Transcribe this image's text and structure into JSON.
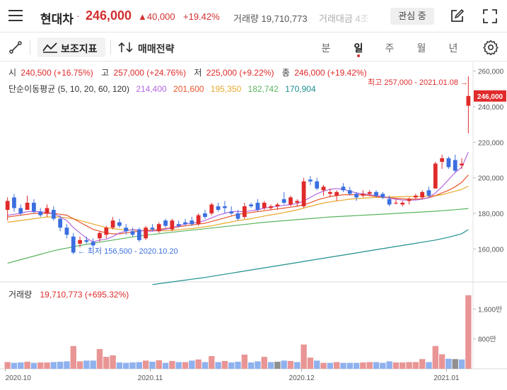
{
  "header": {
    "stock_name": "현대차",
    "separator": "·",
    "price": "246,000",
    "change": "▲40,000",
    "change_pct": "+19.42%",
    "volume_label": "거래량",
    "volume_value": "19,710,773",
    "amount_label": "거래대금 4조",
    "interest_label": "관심 중",
    "icons": [
      "menu-icon",
      "edit-icon",
      "expand-icon"
    ]
  },
  "toolbar": {
    "indicator_label": "보조지표",
    "strategy_label": "매매전략",
    "periods": [
      "분",
      "일",
      "주",
      "월",
      "년"
    ],
    "active_period": "일",
    "icons": [
      "draw-line-icon",
      "indicator-icon",
      "strategy-icon",
      "settings-icon"
    ]
  },
  "legend": {
    "open_label": "시",
    "open": "240,500 (+16.75%)",
    "high_label": "고",
    "high": "257,000 (+24.76%)",
    "low_label": "저",
    "low": "225,000 (+9.22%)",
    "close_label": "종",
    "close": "246,000 (+19.42%)",
    "ma_label": "단순이동평균 (5, 10, 20, 60, 120)",
    "ma_values": [
      {
        "value": "214,400",
        "color": "#b36ae2"
      },
      {
        "value": "201,600",
        "color": "#e8562b"
      },
      {
        "value": "195,350",
        "color": "#e8a92b"
      },
      {
        "value": "182,742",
        "color": "#5ab55e"
      },
      {
        "value": "170,904",
        "color": "#1f8f8f"
      }
    ]
  },
  "annotations": {
    "max": "최고 257,000 - 2021.01.08 →",
    "min": "← 최저 156,500 - 2020.10.20"
  },
  "price_axis": {
    "ticks": [
      "260,000",
      "240,000",
      "220,000",
      "200,000",
      "180,000",
      "160,000"
    ],
    "current": "246,000"
  },
  "volume_panel": {
    "label": "거래량",
    "value": "19,710,773 (+695.32%)",
    "ticks": [
      "1,600만",
      "800만"
    ]
  },
  "x_axis": {
    "ticks": [
      "2020.10",
      "2020.11",
      "2020.12",
      "2021.01"
    ]
  },
  "colors": {
    "up": "#e02b2b",
    "down": "#3b6fe0",
    "volume_up": "#e99595",
    "volume_down": "#8fb1ee",
    "volume_flat": "#909090"
  },
  "chart_data": {
    "type": "candlestick",
    "candles": [
      {
        "o": 182,
        "h": 189,
        "l": 176,
        "c": 187
      },
      {
        "o": 189,
        "h": 191,
        "l": 181,
        "c": 183
      },
      {
        "o": 183,
        "h": 185,
        "l": 179,
        "c": 180
      },
      {
        "o": 182,
        "h": 190,
        "l": 182,
        "c": 186
      },
      {
        "o": 186,
        "h": 188,
        "l": 180,
        "c": 181
      },
      {
        "o": 181,
        "h": 183,
        "l": 178,
        "c": 179
      },
      {
        "o": 180,
        "h": 185,
        "l": 178,
        "c": 183
      },
      {
        "o": 182,
        "h": 184,
        "l": 176,
        "c": 177
      },
      {
        "o": 177,
        "h": 179,
        "l": 170,
        "c": 172
      },
      {
        "o": 172,
        "h": 174,
        "l": 166,
        "c": 168
      },
      {
        "o": 167,
        "h": 169,
        "l": 157,
        "c": 158
      },
      {
        "o": 163,
        "h": 167,
        "l": 161,
        "c": 165
      },
      {
        "o": 165,
        "h": 167,
        "l": 163,
        "c": 164
      },
      {
        "o": 164,
        "h": 166,
        "l": 161,
        "c": 162
      },
      {
        "o": 166,
        "h": 170,
        "l": 164,
        "c": 169
      },
      {
        "o": 168,
        "h": 173,
        "l": 166,
        "c": 172
      },
      {
        "o": 172,
        "h": 178,
        "l": 171,
        "c": 176
      },
      {
        "o": 175,
        "h": 177,
        "l": 172,
        "c": 173
      },
      {
        "o": 172,
        "h": 174,
        "l": 168,
        "c": 170
      },
      {
        "o": 170,
        "h": 172,
        "l": 167,
        "c": 168
      },
      {
        "o": 171,
        "h": 172,
        "l": 164,
        "c": 165
      },
      {
        "o": 166,
        "h": 173,
        "l": 165,
        "c": 172
      },
      {
        "o": 172,
        "h": 174,
        "l": 170,
        "c": 171
      },
      {
        "o": 170,
        "h": 175,
        "l": 169,
        "c": 174
      },
      {
        "o": 176,
        "h": 177,
        "l": 172,
        "c": 173
      },
      {
        "o": 171,
        "h": 177,
        "l": 170,
        "c": 176
      },
      {
        "o": 174,
        "h": 176,
        "l": 172,
        "c": 173
      },
      {
        "o": 175,
        "h": 177,
        "l": 173,
        "c": 174
      },
      {
        "o": 176,
        "h": 178,
        "l": 173,
        "c": 174
      },
      {
        "o": 174,
        "h": 180,
        "l": 173,
        "c": 179
      },
      {
        "o": 180,
        "h": 182,
        "l": 177,
        "c": 178
      },
      {
        "o": 180,
        "h": 186,
        "l": 179,
        "c": 185
      },
      {
        "o": 184,
        "h": 186,
        "l": 181,
        "c": 182
      },
      {
        "o": 184,
        "h": 187,
        "l": 180,
        "c": 183
      },
      {
        "o": 181,
        "h": 184,
        "l": 179,
        "c": 180
      },
      {
        "o": 180,
        "h": 182,
        "l": 176,
        "c": 177
      },
      {
        "o": 178,
        "h": 186,
        "l": 177,
        "c": 184
      },
      {
        "o": 185,
        "h": 186,
        "l": 183,
        "c": 184
      },
      {
        "o": 186,
        "h": 188,
        "l": 181,
        "c": 182
      },
      {
        "o": 183,
        "h": 187,
        "l": 182,
        "c": 186
      },
      {
        "o": 183,
        "h": 185,
        "l": 182,
        "c": 184
      },
      {
        "o": 184,
        "h": 186,
        "l": 182,
        "c": 185
      },
      {
        "o": 188,
        "h": 192,
        "l": 185,
        "c": 186
      },
      {
        "o": 185,
        "h": 190,
        "l": 184,
        "c": 189
      },
      {
        "o": 186,
        "h": 188,
        "l": 184,
        "c": 187
      },
      {
        "o": 184,
        "h": 200,
        "l": 183,
        "c": 198
      },
      {
        "o": 199,
        "h": 201,
        "l": 196,
        "c": 198
      },
      {
        "o": 198,
        "h": 200,
        "l": 193,
        "c": 194
      },
      {
        "o": 193,
        "h": 196,
        "l": 190,
        "c": 195
      },
      {
        "o": 191,
        "h": 194,
        "l": 189,
        "c": 192
      },
      {
        "o": 190,
        "h": 193,
        "l": 187,
        "c": 192
      },
      {
        "o": 195,
        "h": 197,
        "l": 192,
        "c": 193
      },
      {
        "o": 193,
        "h": 195,
        "l": 190,
        "c": 191
      },
      {
        "o": 191,
        "h": 192,
        "l": 187,
        "c": 189
      },
      {
        "o": 190,
        "h": 193,
        "l": 189,
        "c": 191
      },
      {
        "o": 191,
        "h": 193,
        "l": 190,
        "c": 192
      },
      {
        "o": 192,
        "h": 193,
        "l": 189,
        "c": 190
      },
      {
        "o": 191,
        "h": 192,
        "l": 188,
        "c": 189
      },
      {
        "o": 188,
        "h": 190,
        "l": 184,
        "c": 185
      },
      {
        "o": 186,
        "h": 188,
        "l": 185,
        "c": 186
      },
      {
        "o": 185,
        "h": 187,
        "l": 184,
        "c": 186
      },
      {
        "o": 187,
        "h": 189,
        "l": 185,
        "c": 188
      },
      {
        "o": 189,
        "h": 191,
        "l": 188,
        "c": 190
      },
      {
        "o": 189,
        "h": 193,
        "l": 188,
        "c": 192
      },
      {
        "o": 193,
        "h": 195,
        "l": 189,
        "c": 190
      },
      {
        "o": 194,
        "h": 209,
        "l": 194,
        "c": 208
      },
      {
        "o": 209,
        "h": 213,
        "l": 205,
        "c": 211
      },
      {
        "o": 211,
        "h": 212,
        "l": 205,
        "c": 206
      },
      {
        "o": 210,
        "h": 213,
        "l": 203,
        "c": 204
      },
      {
        "o": 207,
        "h": 211,
        "l": 205,
        "c": 208
      },
      {
        "o": 240.5,
        "h": 257,
        "l": 225,
        "c": 246
      }
    ],
    "volumes": [
      {
        "v": 1.8,
        "t": "up"
      },
      {
        "v": 1.6,
        "t": "down"
      },
      {
        "v": 1.7,
        "t": "down"
      },
      {
        "v": 1.9,
        "t": "up"
      },
      {
        "v": 1.6,
        "t": "down"
      },
      {
        "v": 1.7,
        "t": "up"
      },
      {
        "v": 1.7,
        "t": "up"
      },
      {
        "v": 1.8,
        "t": "down"
      },
      {
        "v": 1.9,
        "t": "down"
      },
      {
        "v": 2.0,
        "t": "down"
      },
      {
        "v": 6.1,
        "t": "up"
      },
      {
        "v": 2.0,
        "t": "up"
      },
      {
        "v": 2.2,
        "t": "down"
      },
      {
        "v": 2.2,
        "t": "down"
      },
      {
        "v": 5.3,
        "t": "up"
      },
      {
        "v": 3.2,
        "t": "up"
      },
      {
        "v": 3.6,
        "t": "up"
      },
      {
        "v": 1.7,
        "t": "down"
      },
      {
        "v": 1.6,
        "t": "down"
      },
      {
        "v": 1.7,
        "t": "down"
      },
      {
        "v": 1.8,
        "t": "down"
      },
      {
        "v": 2.2,
        "t": "up"
      },
      {
        "v": 1.9,
        "t": "down"
      },
      {
        "v": 2.3,
        "t": "up"
      },
      {
        "v": 1.6,
        "t": "down"
      },
      {
        "v": 2.1,
        "t": "up"
      },
      {
        "v": 1.8,
        "t": "down"
      },
      {
        "v": 1.8,
        "t": "up"
      },
      {
        "v": 2.2,
        "t": "down"
      },
      {
        "v": 2.5,
        "t": "up"
      },
      {
        "v": 1.8,
        "t": "down"
      },
      {
        "v": 3.4,
        "t": "up"
      },
      {
        "v": 1.8,
        "t": "down"
      },
      {
        "v": 2.1,
        "t": "up"
      },
      {
        "v": 1.7,
        "t": "down"
      },
      {
        "v": 1.9,
        "t": "down"
      },
      {
        "v": 3.8,
        "t": "up"
      },
      {
        "v": 1.7,
        "t": "down"
      },
      {
        "v": 2.0,
        "t": "down"
      },
      {
        "v": 3.2,
        "t": "up"
      },
      {
        "v": 1.8,
        "t": "down"
      },
      {
        "v": 1.9,
        "t": "flat"
      },
      {
        "v": 2.2,
        "t": "down"
      },
      {
        "v": 2.1,
        "t": "up"
      },
      {
        "v": 1.8,
        "t": "down"
      },
      {
        "v": 6.5,
        "t": "up"
      },
      {
        "v": 3.0,
        "t": "up"
      },
      {
        "v": 2.2,
        "t": "down"
      },
      {
        "v": 1.6,
        "t": "up"
      },
      {
        "v": 1.6,
        "t": "down"
      },
      {
        "v": 1.8,
        "t": "up"
      },
      {
        "v": 1.6,
        "t": "down"
      },
      {
        "v": 1.6,
        "t": "down"
      },
      {
        "v": 1.6,
        "t": "down"
      },
      {
        "v": 1.7,
        "t": "up"
      },
      {
        "v": 1.8,
        "t": "up"
      },
      {
        "v": 1.8,
        "t": "down"
      },
      {
        "v": 1.6,
        "t": "down"
      },
      {
        "v": 2.0,
        "t": "down"
      },
      {
        "v": 1.7,
        "t": "up"
      },
      {
        "v": 1.7,
        "t": "up"
      },
      {
        "v": 1.8,
        "t": "up"
      },
      {
        "v": 1.8,
        "t": "up"
      },
      {
        "v": 2.6,
        "t": "up"
      },
      {
        "v": 1.8,
        "t": "down"
      },
      {
        "v": 6.1,
        "t": "up"
      },
      {
        "v": 3.9,
        "t": "up"
      },
      {
        "v": 2.7,
        "t": "down"
      },
      {
        "v": 2.6,
        "t": "flat"
      },
      {
        "v": 2.5,
        "t": "down"
      },
      {
        "v": 19.7,
        "t": "up"
      }
    ],
    "ma5": [
      179,
      179.5,
      180,
      181,
      181,
      181,
      180.5,
      180,
      178,
      176,
      172,
      169,
      166,
      164,
      165,
      165.5,
      167,
      169,
      170,
      171,
      170.5,
      170,
      170,
      170.5,
      171,
      172,
      173,
      174,
      174.5,
      175,
      176,
      177.5,
      179,
      180,
      181,
      181,
      181,
      181.5,
      182,
      183,
      183.5,
      184,
      184.5,
      185,
      185.5,
      187,
      189,
      191,
      192.5,
      193.5,
      194,
      193.5,
      192.5,
      191.5,
      191,
      190.5,
      190,
      189.5,
      188.5,
      188,
      187.5,
      187.5,
      187.5,
      188,
      189,
      191.5,
      195,
      199,
      203,
      206,
      214.4
    ],
    "ma10": [
      178,
      178.5,
      179,
      179.5,
      180,
      180,
      180,
      180,
      179.5,
      179,
      177,
      175,
      173,
      171,
      170,
      169,
      168.5,
      168.5,
      169,
      169.5,
      170,
      170.5,
      170.5,
      171,
      171.5,
      172,
      172.5,
      173,
      173.5,
      174,
      174.5,
      175.5,
      176.5,
      177.5,
      178.5,
      179.5,
      180,
      180.5,
      181,
      181.5,
      182,
      182.5,
      183,
      183.5,
      184,
      185,
      186,
      187.5,
      188.5,
      189.5,
      190,
      190.5,
      190.5,
      190.5,
      190.5,
      190,
      189.5,
      189,
      188.8,
      188.5,
      188.2,
      188,
      188,
      188.2,
      188.8,
      190,
      191.5,
      193,
      195,
      197.5,
      201.6
    ],
    "ma20": [
      175,
      175.5,
      176,
      176.5,
      177,
      177.5,
      178,
      178,
      178,
      177.5,
      177,
      176,
      175,
      174,
      173,
      172,
      171.5,
      171,
      170.8,
      170.6,
      170.4,
      170.3,
      170.2,
      170.2,
      170.2,
      170.5,
      170.8,
      171.2,
      171.5,
      172,
      172.5,
      173,
      173.8,
      174.5,
      175.2,
      176,
      176.5,
      177,
      177.8,
      178.5,
      179.2,
      179.8,
      180.5,
      181.2,
      182,
      183,
      184,
      185,
      185.8,
      186.5,
      187,
      187.5,
      188,
      188.3,
      188.6,
      188.8,
      189,
      189.1,
      189.2,
      189.3,
      189.4,
      189.5,
      189.5,
      189.6,
      189.7,
      190,
      190.5,
      191.5,
      192.5,
      193.5,
      195.35
    ],
    "ma60": [
      152,
      153,
      154,
      155,
      156,
      157,
      158,
      159,
      159.8,
      160.5,
      161.2,
      162,
      162.6,
      163.2,
      163.8,
      164.4,
      165,
      165.6,
      166.2,
      166.8,
      167.3,
      167.8,
      168.2,
      168.6,
      169,
      169.4,
      169.8,
      170.2,
      170.6,
      171,
      171.4,
      171.8,
      172.2,
      172.6,
      173,
      173.4,
      173.8,
      174.2,
      174.6,
      175,
      175.3,
      175.6,
      175.9,
      176.2,
      176.5,
      176.8,
      177.1,
      177.4,
      177.7,
      178,
      178.2,
      178.4,
      178.6,
      178.8,
      179,
      179.2,
      179.4,
      179.6,
      179.8,
      180,
      180.2,
      180.4,
      180.6,
      180.8,
      181,
      181.2,
      181.5,
      181.8,
      182.1,
      182.4,
      182.742
    ],
    "ma120_visible_from": 22,
    "ma120": [
      null,
      null,
      null,
      null,
      null,
      null,
      null,
      null,
      null,
      null,
      null,
      null,
      null,
      null,
      null,
      null,
      null,
      null,
      null,
      null,
      null,
      null,
      140,
      140.5,
      141,
      141.5,
      142,
      142.5,
      143,
      143.5,
      144,
      144.6,
      145.2,
      145.8,
      146.4,
      147,
      147.6,
      148.2,
      148.8,
      149.4,
      150,
      150.6,
      151.2,
      151.8,
      152.4,
      153,
      153.6,
      154.2,
      154.8,
      155.4,
      156,
      156.6,
      157.2,
      157.8,
      158.4,
      159,
      159.6,
      160.2,
      160.8,
      161.4,
      162,
      162.6,
      163.2,
      163.8,
      164.4,
      165,
      165.8,
      166.6,
      167.6,
      168.6,
      170.904
    ],
    "price_range": [
      141.5,
      265
    ],
    "volume_range_man": [
      0,
      2100
    ]
  }
}
